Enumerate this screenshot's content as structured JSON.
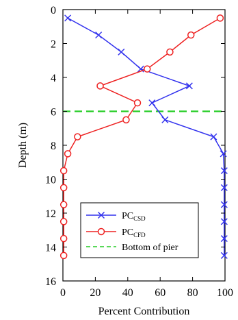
{
  "chart_data": {
    "type": "line",
    "xlabel": "Percent Contribution",
    "ylabel": "Depth (m)",
    "xlim": [
      0,
      100
    ],
    "ylim": [
      0,
      16
    ],
    "y_inverted": true,
    "grid": false,
    "legend_placement": "bottom-center",
    "x_ticks": [
      0,
      20,
      40,
      60,
      80,
      100
    ],
    "y_ticks": [
      0,
      2,
      4,
      6,
      8,
      10,
      12,
      14,
      16
    ],
    "series": [
      {
        "name_main": "PC",
        "name_sub": "CSD",
        "color": "#3333ee",
        "marker": "x",
        "points": [
          {
            "x": 3,
            "y": 0.5
          },
          {
            "x": 22,
            "y": 1.5
          },
          {
            "x": 36,
            "y": 2.5
          },
          {
            "x": 48,
            "y": 3.5
          },
          {
            "x": 78,
            "y": 4.5
          },
          {
            "x": 55,
            "y": 5.5
          },
          {
            "x": 63,
            "y": 6.5
          },
          {
            "x": 93,
            "y": 7.5
          },
          {
            "x": 99,
            "y": 8.5
          },
          {
            "x": 99.5,
            "y": 9.5
          },
          {
            "x": 99.5,
            "y": 10.5
          },
          {
            "x": 99.5,
            "y": 11.5
          },
          {
            "x": 99.5,
            "y": 12.5
          },
          {
            "x": 99.5,
            "y": 13.5
          },
          {
            "x": 99.5,
            "y": 14.5
          }
        ]
      },
      {
        "name_main": "PC",
        "name_sub": "CFD",
        "color": "#ee2222",
        "marker": "circle",
        "points": [
          {
            "x": 97,
            "y": 0.5
          },
          {
            "x": 79,
            "y": 1.5
          },
          {
            "x": 66,
            "y": 2.5
          },
          {
            "x": 52,
            "y": 3.5
          },
          {
            "x": 23,
            "y": 4.5
          },
          {
            "x": 46,
            "y": 5.5
          },
          {
            "x": 39,
            "y": 6.5
          },
          {
            "x": 9,
            "y": 7.5
          },
          {
            "x": 3,
            "y": 8.5
          },
          {
            "x": 0.5,
            "y": 9.5
          },
          {
            "x": 0.5,
            "y": 10.5
          },
          {
            "x": 0.5,
            "y": 11.5
          },
          {
            "x": 0.5,
            "y": 12.5
          },
          {
            "x": 0.5,
            "y": 13.5
          },
          {
            "x": 0.5,
            "y": 14.5
          }
        ]
      }
    ],
    "reference_lines": [
      {
        "name": "Bottom of pier",
        "orientation": "horizontal",
        "y": 6,
        "color": "#22cc22",
        "dashed": true
      }
    ]
  }
}
